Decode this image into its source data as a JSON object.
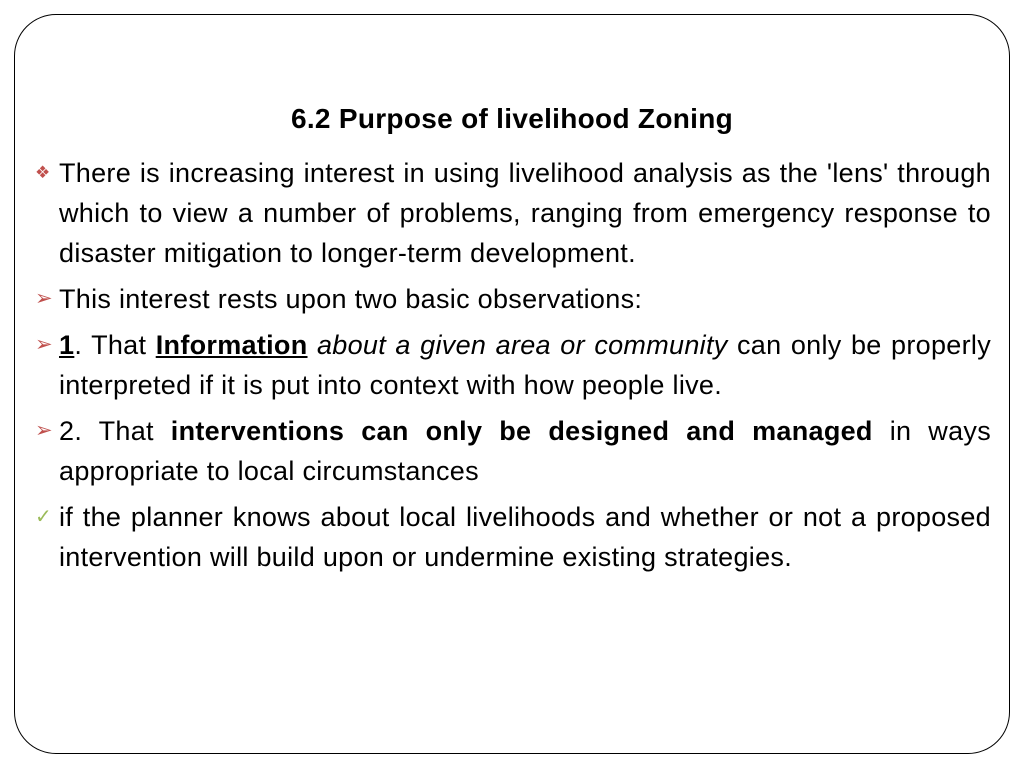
{
  "title": "6.2 Purpose of livelihood Zoning",
  "items": [
    {
      "bulletClass": "diamond",
      "bulletGlyph": "❖",
      "segments": [
        {
          "text": "There is increasing interest in using livelihood analysis as the 'lens' through which to view a number of problems, ranging from emergency response to disaster mitigation to longer-term development."
        }
      ]
    },
    {
      "bulletClass": "arrow",
      "bulletGlyph": "➢",
      "segments": [
        {
          "text": "This interest rests upon two basic observations:"
        }
      ]
    },
    {
      "bulletClass": "arrow",
      "bulletGlyph": "➢",
      "segments": [
        {
          "text": "1",
          "bold": true,
          "under": true
        },
        {
          "text": ". That "
        },
        {
          "text": "Information",
          "bold": true,
          "under": true
        },
        {
          "text": " "
        },
        {
          "text": "about a given area or community",
          "italic": true
        },
        {
          "text": " can only be properly interpreted if it is put into context with how people live."
        }
      ]
    },
    {
      "bulletClass": "arrow2",
      "bulletGlyph": "➢",
      "segments": [
        {
          "text": "2. That "
        },
        {
          "text": "interventions can only be designed and managed",
          "bold": true
        },
        {
          "text": " in ways appropriate to local circumstances"
        }
      ]
    },
    {
      "bulletClass": "check",
      "bulletGlyph": "✓",
      "segments": [
        {
          "text": "if the planner knows about local livelihoods and whether or not a proposed intervention will build upon or undermine existing strategies."
        }
      ]
    }
  ],
  "colors": {
    "diamond": "#c0504d",
    "arrow": "#c0504d",
    "check": "#9bbb59",
    "text": "#000000",
    "border": "#000000",
    "background": "#ffffff"
  }
}
